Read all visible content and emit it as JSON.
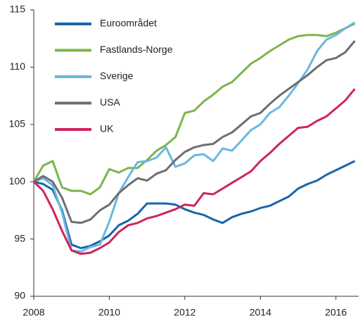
{
  "chart_data": {
    "type": "line",
    "x": [
      2008,
      2008.25,
      2008.5,
      2008.75,
      2009,
      2009.25,
      2009.5,
      2009.75,
      2010,
      2010.25,
      2010.5,
      2010.75,
      2011,
      2011.25,
      2011.5,
      2011.75,
      2012,
      2012.25,
      2012.5,
      2012.75,
      2013,
      2013.25,
      2013.5,
      2013.75,
      2014,
      2014.25,
      2014.5,
      2014.75,
      2015,
      2015.25,
      2015.5,
      2015.75,
      2016,
      2016.25,
      2016.5
    ],
    "series": [
      {
        "name": "Euroområdet",
        "color": "#1a64ad",
        "values": [
          100,
          99.8,
          99.3,
          97.5,
          94.5,
          94.2,
          94.4,
          94.8,
          95.3,
          96.2,
          96.6,
          97.2,
          98.1,
          98.1,
          98.1,
          98.0,
          97.6,
          97.3,
          97.1,
          96.7,
          96.4,
          96.9,
          97.2,
          97.4,
          97.7,
          97.9,
          98.3,
          98.7,
          99.4,
          99.8,
          100.1,
          100.6,
          101.0,
          101.4,
          101.8
        ]
      },
      {
        "name": "Fastlands-Norge",
        "color": "#7db54a",
        "values": [
          100,
          101.4,
          101.8,
          99.5,
          99.2,
          99.2,
          98.9,
          99.5,
          101.1,
          100.8,
          101.2,
          101.2,
          101.9,
          102.7,
          103.2,
          103.9,
          106.0,
          106.2,
          107.0,
          107.6,
          108.3,
          108.7,
          109.5,
          110.3,
          110.8,
          111.4,
          111.9,
          112.4,
          112.7,
          112.8,
          112.8,
          112.7,
          113.0,
          113.4,
          113.8
        ]
      },
      {
        "name": "Sverige",
        "color": "#6ab7e2",
        "values": [
          100,
          100.3,
          99.7,
          97.3,
          94.0,
          93.9,
          94.3,
          94.5,
          96.5,
          99.0,
          100.4,
          101.7,
          101.8,
          102.1,
          103.0,
          101.3,
          101.6,
          102.3,
          102.4,
          101.8,
          102.9,
          102.7,
          103.6,
          104.5,
          105.0,
          106.0,
          106.5,
          107.5,
          108.6,
          109.8,
          111.4,
          112.4,
          112.8,
          113.4,
          113.9
        ]
      },
      {
        "name": "USA",
        "color": "#6d6e70",
        "values": [
          100,
          100.5,
          100.0,
          98.6,
          96.5,
          96.4,
          96.7,
          97.5,
          98.0,
          99.0,
          99.7,
          100.3,
          100.1,
          100.7,
          101.0,
          101.9,
          102.6,
          103.0,
          103.2,
          103.3,
          103.9,
          104.3,
          105.0,
          105.7,
          106.0,
          106.8,
          107.5,
          108.1,
          108.7,
          109.3,
          110.0,
          110.6,
          110.8,
          111.3,
          112.3
        ]
      },
      {
        "name": "UK",
        "color": "#d0245a",
        "values": [
          100,
          99.2,
          97.6,
          95.7,
          94.0,
          93.7,
          93.8,
          94.2,
          94.7,
          95.6,
          96.2,
          96.4,
          96.8,
          97.0,
          97.3,
          97.6,
          98.0,
          97.9,
          99.0,
          98.9,
          99.4,
          99.9,
          100.4,
          100.9,
          101.8,
          102.5,
          103.3,
          104.0,
          104.7,
          104.8,
          105.3,
          105.7,
          106.4,
          107.1,
          108.1
        ]
      }
    ],
    "xlim": [
      2008,
      2016.6
    ],
    "xticks": [
      2008,
      2010,
      2012,
      2014,
      2016
    ],
    "ylim": [
      90,
      115
    ],
    "yticks": [
      90,
      95,
      100,
      105,
      110,
      115
    ],
    "legend": "upper left"
  }
}
